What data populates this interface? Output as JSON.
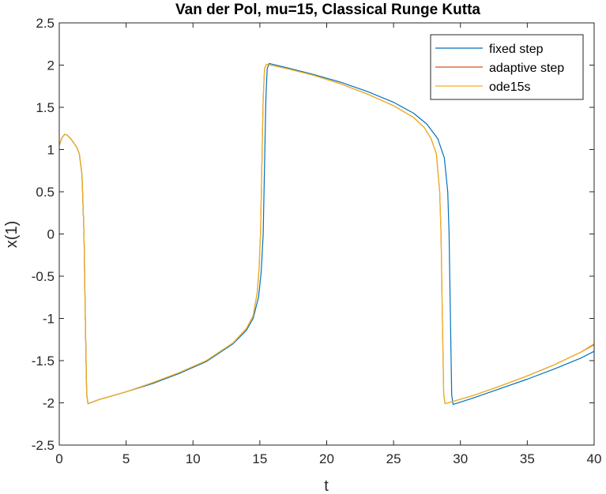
{
  "chart_data": {
    "type": "line",
    "title": "Van der Pol, mu=15, Classical Runge Kutta",
    "xlabel": "t",
    "ylabel": "x(1)",
    "xlim": [
      0,
      40
    ],
    "ylim": [
      -2.5,
      2.5
    ],
    "xticks": [
      "0",
      "5",
      "10",
      "15",
      "20",
      "25",
      "30",
      "35",
      "40"
    ],
    "yticks": [
      "2.5",
      "2",
      "1.5",
      "1",
      "0.5",
      "0",
      "-0.5",
      "-1",
      "-1.5",
      "-2",
      "-2.5"
    ],
    "grid": false,
    "legend_position": "top-right",
    "series": [
      {
        "name": "fixed step",
        "color": "#0072BD",
        "points": [
          [
            0,
            1.05
          ],
          [
            0.2,
            1.14
          ],
          [
            0.4,
            1.18
          ],
          [
            0.6,
            1.17
          ],
          [
            0.9,
            1.12
          ],
          [
            1.3,
            1.03
          ],
          [
            1.5,
            0.95
          ],
          [
            1.7,
            0.7
          ],
          [
            1.85,
            0.0
          ],
          [
            1.95,
            -1.0
          ],
          [
            2.05,
            -1.9
          ],
          [
            2.15,
            -2.01
          ],
          [
            3,
            -1.96
          ],
          [
            5,
            -1.87
          ],
          [
            7,
            -1.77
          ],
          [
            9,
            -1.65
          ],
          [
            11,
            -1.51
          ],
          [
            13,
            -1.3
          ],
          [
            14,
            -1.14
          ],
          [
            14.5,
            -1.0
          ],
          [
            14.9,
            -0.75
          ],
          [
            15.1,
            -0.45
          ],
          [
            15.25,
            0.0
          ],
          [
            15.35,
            0.8
          ],
          [
            15.45,
            1.6
          ],
          [
            15.55,
            1.96
          ],
          [
            15.7,
            2.02
          ],
          [
            17,
            1.97
          ],
          [
            19,
            1.89
          ],
          [
            21,
            1.8
          ],
          [
            23,
            1.69
          ],
          [
            25,
            1.56
          ],
          [
            26.5,
            1.43
          ],
          [
            27.5,
            1.3
          ],
          [
            28.3,
            1.13
          ],
          [
            28.8,
            0.9
          ],
          [
            29.05,
            0.5
          ],
          [
            29.15,
            0.0
          ],
          [
            29.25,
            -1.0
          ],
          [
            29.35,
            -1.9
          ],
          [
            29.45,
            -2.02
          ],
          [
            31,
            -1.94
          ],
          [
            33,
            -1.83
          ],
          [
            35,
            -1.72
          ],
          [
            37,
            -1.6
          ],
          [
            39,
            -1.47
          ],
          [
            40,
            -1.39
          ]
        ]
      },
      {
        "name": "adaptive step",
        "color": "#D95319",
        "points": [
          [
            0,
            1.05
          ],
          [
            0.2,
            1.14
          ],
          [
            0.4,
            1.18
          ],
          [
            0.6,
            1.17
          ],
          [
            0.9,
            1.12
          ],
          [
            1.3,
            1.03
          ],
          [
            1.5,
            0.95
          ],
          [
            1.7,
            0.7
          ],
          [
            1.85,
            0.0
          ],
          [
            1.95,
            -1.0
          ],
          [
            2.05,
            -1.9
          ],
          [
            2.15,
            -2.01
          ],
          [
            3,
            -1.96
          ],
          [
            5,
            -1.87
          ],
          [
            7,
            -1.76
          ],
          [
            9,
            -1.64
          ],
          [
            11,
            -1.5
          ],
          [
            13,
            -1.29
          ],
          [
            14,
            -1.12
          ],
          [
            14.5,
            -0.97
          ],
          [
            14.8,
            -0.7
          ],
          [
            14.95,
            -0.4
          ],
          [
            15.05,
            0.0
          ],
          [
            15.15,
            0.8
          ],
          [
            15.25,
            1.6
          ],
          [
            15.35,
            1.96
          ],
          [
            15.5,
            2.01
          ],
          [
            17,
            1.96
          ],
          [
            19,
            1.88
          ],
          [
            21,
            1.78
          ],
          [
            23,
            1.66
          ],
          [
            25,
            1.52
          ],
          [
            26.5,
            1.38
          ],
          [
            27.3,
            1.26
          ],
          [
            27.8,
            1.13
          ],
          [
            28.2,
            0.95
          ],
          [
            28.45,
            0.5
          ],
          [
            28.55,
            0.0
          ],
          [
            28.65,
            -1.0
          ],
          [
            28.75,
            -1.9
          ],
          [
            28.85,
            -2.01
          ],
          [
            31,
            -1.91
          ],
          [
            33,
            -1.8
          ],
          [
            35,
            -1.68
          ],
          [
            37,
            -1.55
          ],
          [
            39,
            -1.4
          ],
          [
            40,
            -1.31
          ]
        ]
      },
      {
        "name": "ode15s",
        "color": "#EDB120",
        "points": [
          [
            0,
            1.05
          ],
          [
            0.2,
            1.14
          ],
          [
            0.4,
            1.18
          ],
          [
            0.6,
            1.17
          ],
          [
            0.9,
            1.12
          ],
          [
            1.3,
            1.03
          ],
          [
            1.5,
            0.95
          ],
          [
            1.7,
            0.7
          ],
          [
            1.85,
            0.0
          ],
          [
            1.95,
            -1.0
          ],
          [
            2.05,
            -1.9
          ],
          [
            2.15,
            -2.01
          ],
          [
            3,
            -1.96
          ],
          [
            5,
            -1.87
          ],
          [
            7,
            -1.76
          ],
          [
            9,
            -1.64
          ],
          [
            11,
            -1.5
          ],
          [
            13,
            -1.29
          ],
          [
            14,
            -1.12
          ],
          [
            14.5,
            -0.97
          ],
          [
            14.8,
            -0.7
          ],
          [
            14.95,
            -0.4
          ],
          [
            15.05,
            0.0
          ],
          [
            15.15,
            0.8
          ],
          [
            15.25,
            1.6
          ],
          [
            15.35,
            1.96
          ],
          [
            15.5,
            2.01
          ],
          [
            17,
            1.96
          ],
          [
            19,
            1.88
          ],
          [
            21,
            1.78
          ],
          [
            23,
            1.66
          ],
          [
            25,
            1.52
          ],
          [
            26.5,
            1.38
          ],
          [
            27.3,
            1.26
          ],
          [
            27.8,
            1.13
          ],
          [
            28.2,
            0.95
          ],
          [
            28.45,
            0.5
          ],
          [
            28.55,
            0.0
          ],
          [
            28.65,
            -1.0
          ],
          [
            28.75,
            -1.9
          ],
          [
            28.85,
            -2.01
          ],
          [
            31,
            -1.91
          ],
          [
            33,
            -1.8
          ],
          [
            35,
            -1.68
          ],
          [
            37,
            -1.55
          ],
          [
            39,
            -1.4
          ],
          [
            40,
            -1.3
          ]
        ]
      }
    ]
  }
}
